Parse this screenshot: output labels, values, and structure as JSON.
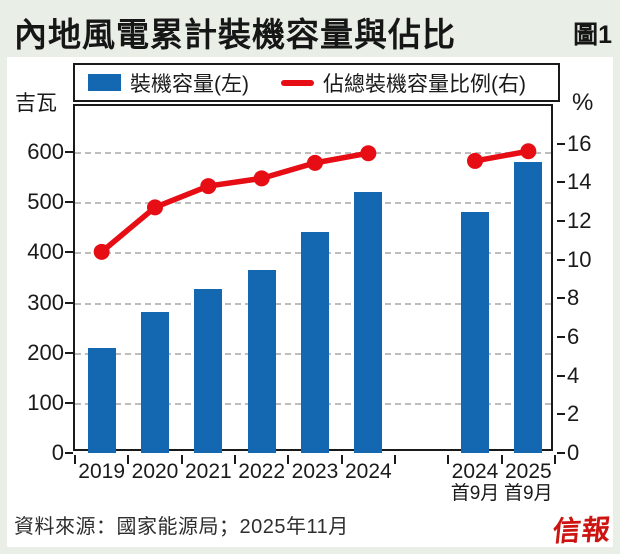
{
  "page": {
    "title": "內地風電累計裝機容量與佔比",
    "figure_label": "圖1",
    "source": "資料來源：國家能源局；2025年11月",
    "brand": "信報"
  },
  "legend": {
    "items": [
      {
        "swatch": "bar-swatch",
        "label": "裝機容量(左)"
      },
      {
        "swatch": "line-swatch",
        "label": "佔總裝機容量比例(右)"
      }
    ]
  },
  "chart_data": {
    "type": "combo",
    "title": "內地風電累計裝機容量與佔比",
    "categories": [
      {
        "label": "2019"
      },
      {
        "label": "2020"
      },
      {
        "label": "2021"
      },
      {
        "label": "2022"
      },
      {
        "label": "2023"
      },
      {
        "label": "2024"
      },
      {
        "label": "",
        "gap": true
      },
      {
        "label": "2024",
        "sub": "首9月"
      },
      {
        "label": "2025",
        "sub": "首9月"
      }
    ],
    "series": [
      {
        "name": "裝機容量(左)",
        "type": "bar",
        "axis": "left",
        "color": "#1368b1",
        "values": [
          210,
          281,
          328,
          365,
          441,
          521,
          null,
          480,
          580
        ]
      },
      {
        "name": "佔總裝機容量比例(右)",
        "type": "line",
        "axis": "right",
        "color": "#e60d15",
        "values": [
          10.4,
          12.7,
          13.8,
          14.2,
          15.0,
          15.5,
          null,
          15.1,
          15.6
        ]
      }
    ],
    "left_axis": {
      "unit": "吉瓦",
      "ticks": [
        0,
        100,
        200,
        300,
        400,
        500,
        600
      ],
      "range_top": 692
    },
    "right_axis": {
      "unit": "%",
      "ticks": [
        0,
        2,
        4,
        6,
        8,
        10,
        12,
        14,
        16
      ],
      "range_top": 17.94
    },
    "grid": "horizontal-dashed",
    "gridline_color": "#bdbdbd",
    "legend_position": "top"
  }
}
